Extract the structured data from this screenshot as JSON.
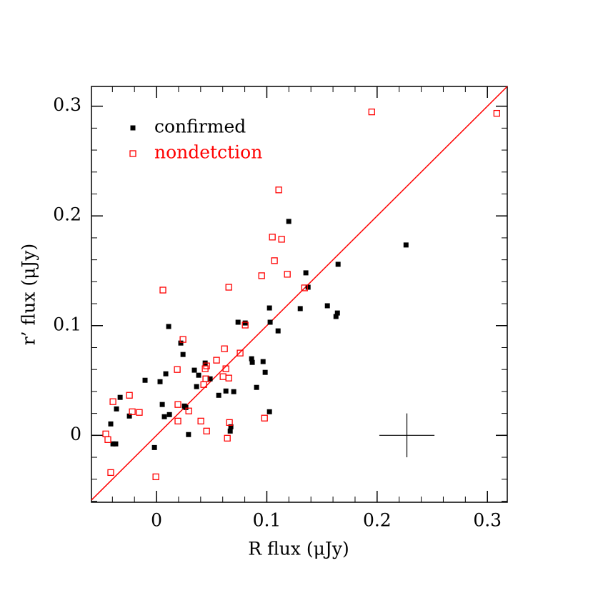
{
  "chart_data": {
    "type": "scatter",
    "xlabel": "R flux (μJy)",
    "ylabel": "r’ flux (μJy)",
    "xlim": [
      -0.059,
      0.318
    ],
    "ylim": [
      -0.061,
      0.318
    ],
    "xticks": [
      0,
      0.1,
      0.2,
      0.3
    ],
    "yticks": [
      0,
      0.1,
      0.2,
      0.3
    ],
    "legend": "upper left",
    "diagonal": true,
    "diagonal_color": "#ff0000",
    "series": [
      {
        "name": "confirmed",
        "color": "#000000",
        "marker": "filled-square",
        "x": [
          -0.0415,
          -0.0395,
          -0.037,
          -0.0363,
          -0.033,
          -0.0246,
          -0.0104,
          -0.0019,
          0.0032,
          0.0052,
          0.0071,
          0.0084,
          0.011,
          0.0117,
          0.022,
          0.024,
          0.0253,
          0.0266,
          0.029,
          0.0343,
          0.0363,
          0.0382,
          0.0441,
          0.0486,
          0.0564,
          0.0629,
          0.0668,
          0.0674,
          0.07,
          0.0739,
          0.0804,
          0.0862,
          0.0868,
          0.0907,
          0.0966,
          0.0985,
          0.1024,
          0.1024,
          0.103,
          0.1102,
          0.1199,
          0.1303,
          0.1354,
          0.1374,
          0.1549,
          0.1627,
          0.164,
          0.1646,
          0.2262
        ],
        "values": [
          0.0104,
          -0.0078,
          -0.0078,
          0.0241,
          0.0346,
          0.0176,
          0.0502,
          -0.0111,
          0.0489,
          0.0281,
          0.017,
          0.0561,
          0.0992,
          0.0189,
          0.0841,
          0.0737,
          0.0267,
          0.0254,
          0.0007,
          0.0594,
          0.0444,
          0.0548,
          0.0659,
          0.0515,
          0.0365,
          0.0404,
          0.0039,
          0.0078,
          0.0398,
          0.1031,
          0.1024,
          0.0698,
          0.0665,
          0.0437,
          0.0672,
          0.0574,
          0.0215,
          0.1161,
          0.1031,
          0.0952,
          0.195,
          0.1155,
          0.1481,
          0.135,
          0.1181,
          0.1083,
          0.1115,
          0.1559,
          0.1735
        ]
      },
      {
        "name": "nondetction",
        "color": "#ff0000",
        "marker": "open-square",
        "x": [
          -0.046,
          -0.0441,
          -0.0415,
          -0.0395,
          -0.0246,
          -0.022,
          -0.0156,
          -0.0006,
          0.0058,
          0.0188,
          0.0194,
          0.0194,
          0.024,
          0.0292,
          0.0402,
          0.0428,
          0.0441,
          0.0447,
          0.0454,
          0.0454,
          0.0544,
          0.0603,
          0.0616,
          0.0629,
          0.0642,
          0.0655,
          0.0655,
          0.0661,
          0.0758,
          0.0804,
          0.0953,
          0.0979,
          0.105,
          0.1069,
          0.1108,
          0.1134,
          0.1186,
          0.1342,
          0.1951,
          0.3085
        ],
        "values": [
          0.0013,
          -0.0039,
          -0.0339,
          0.0307,
          0.0365,
          0.0215,
          0.0209,
          -0.0378,
          0.1324,
          0.06,
          0.0281,
          0.013,
          0.0874,
          0.0222,
          0.013,
          0.0463,
          0.0607,
          0.0515,
          0.0633,
          0.0039,
          0.0685,
          0.0535,
          0.0789,
          0.0607,
          -0.0026,
          0.0522,
          0.135,
          0.0117,
          0.075,
          0.1005,
          0.1455,
          0.0157,
          0.1807,
          0.1592,
          0.2237,
          0.1787,
          0.1468,
          0.1344,
          0.2948,
          0.2935
        ]
      }
    ],
    "error_cross": {
      "x": 0.227,
      "y": 0,
      "xerr": 0.025,
      "yerr": 0.02
    }
  }
}
